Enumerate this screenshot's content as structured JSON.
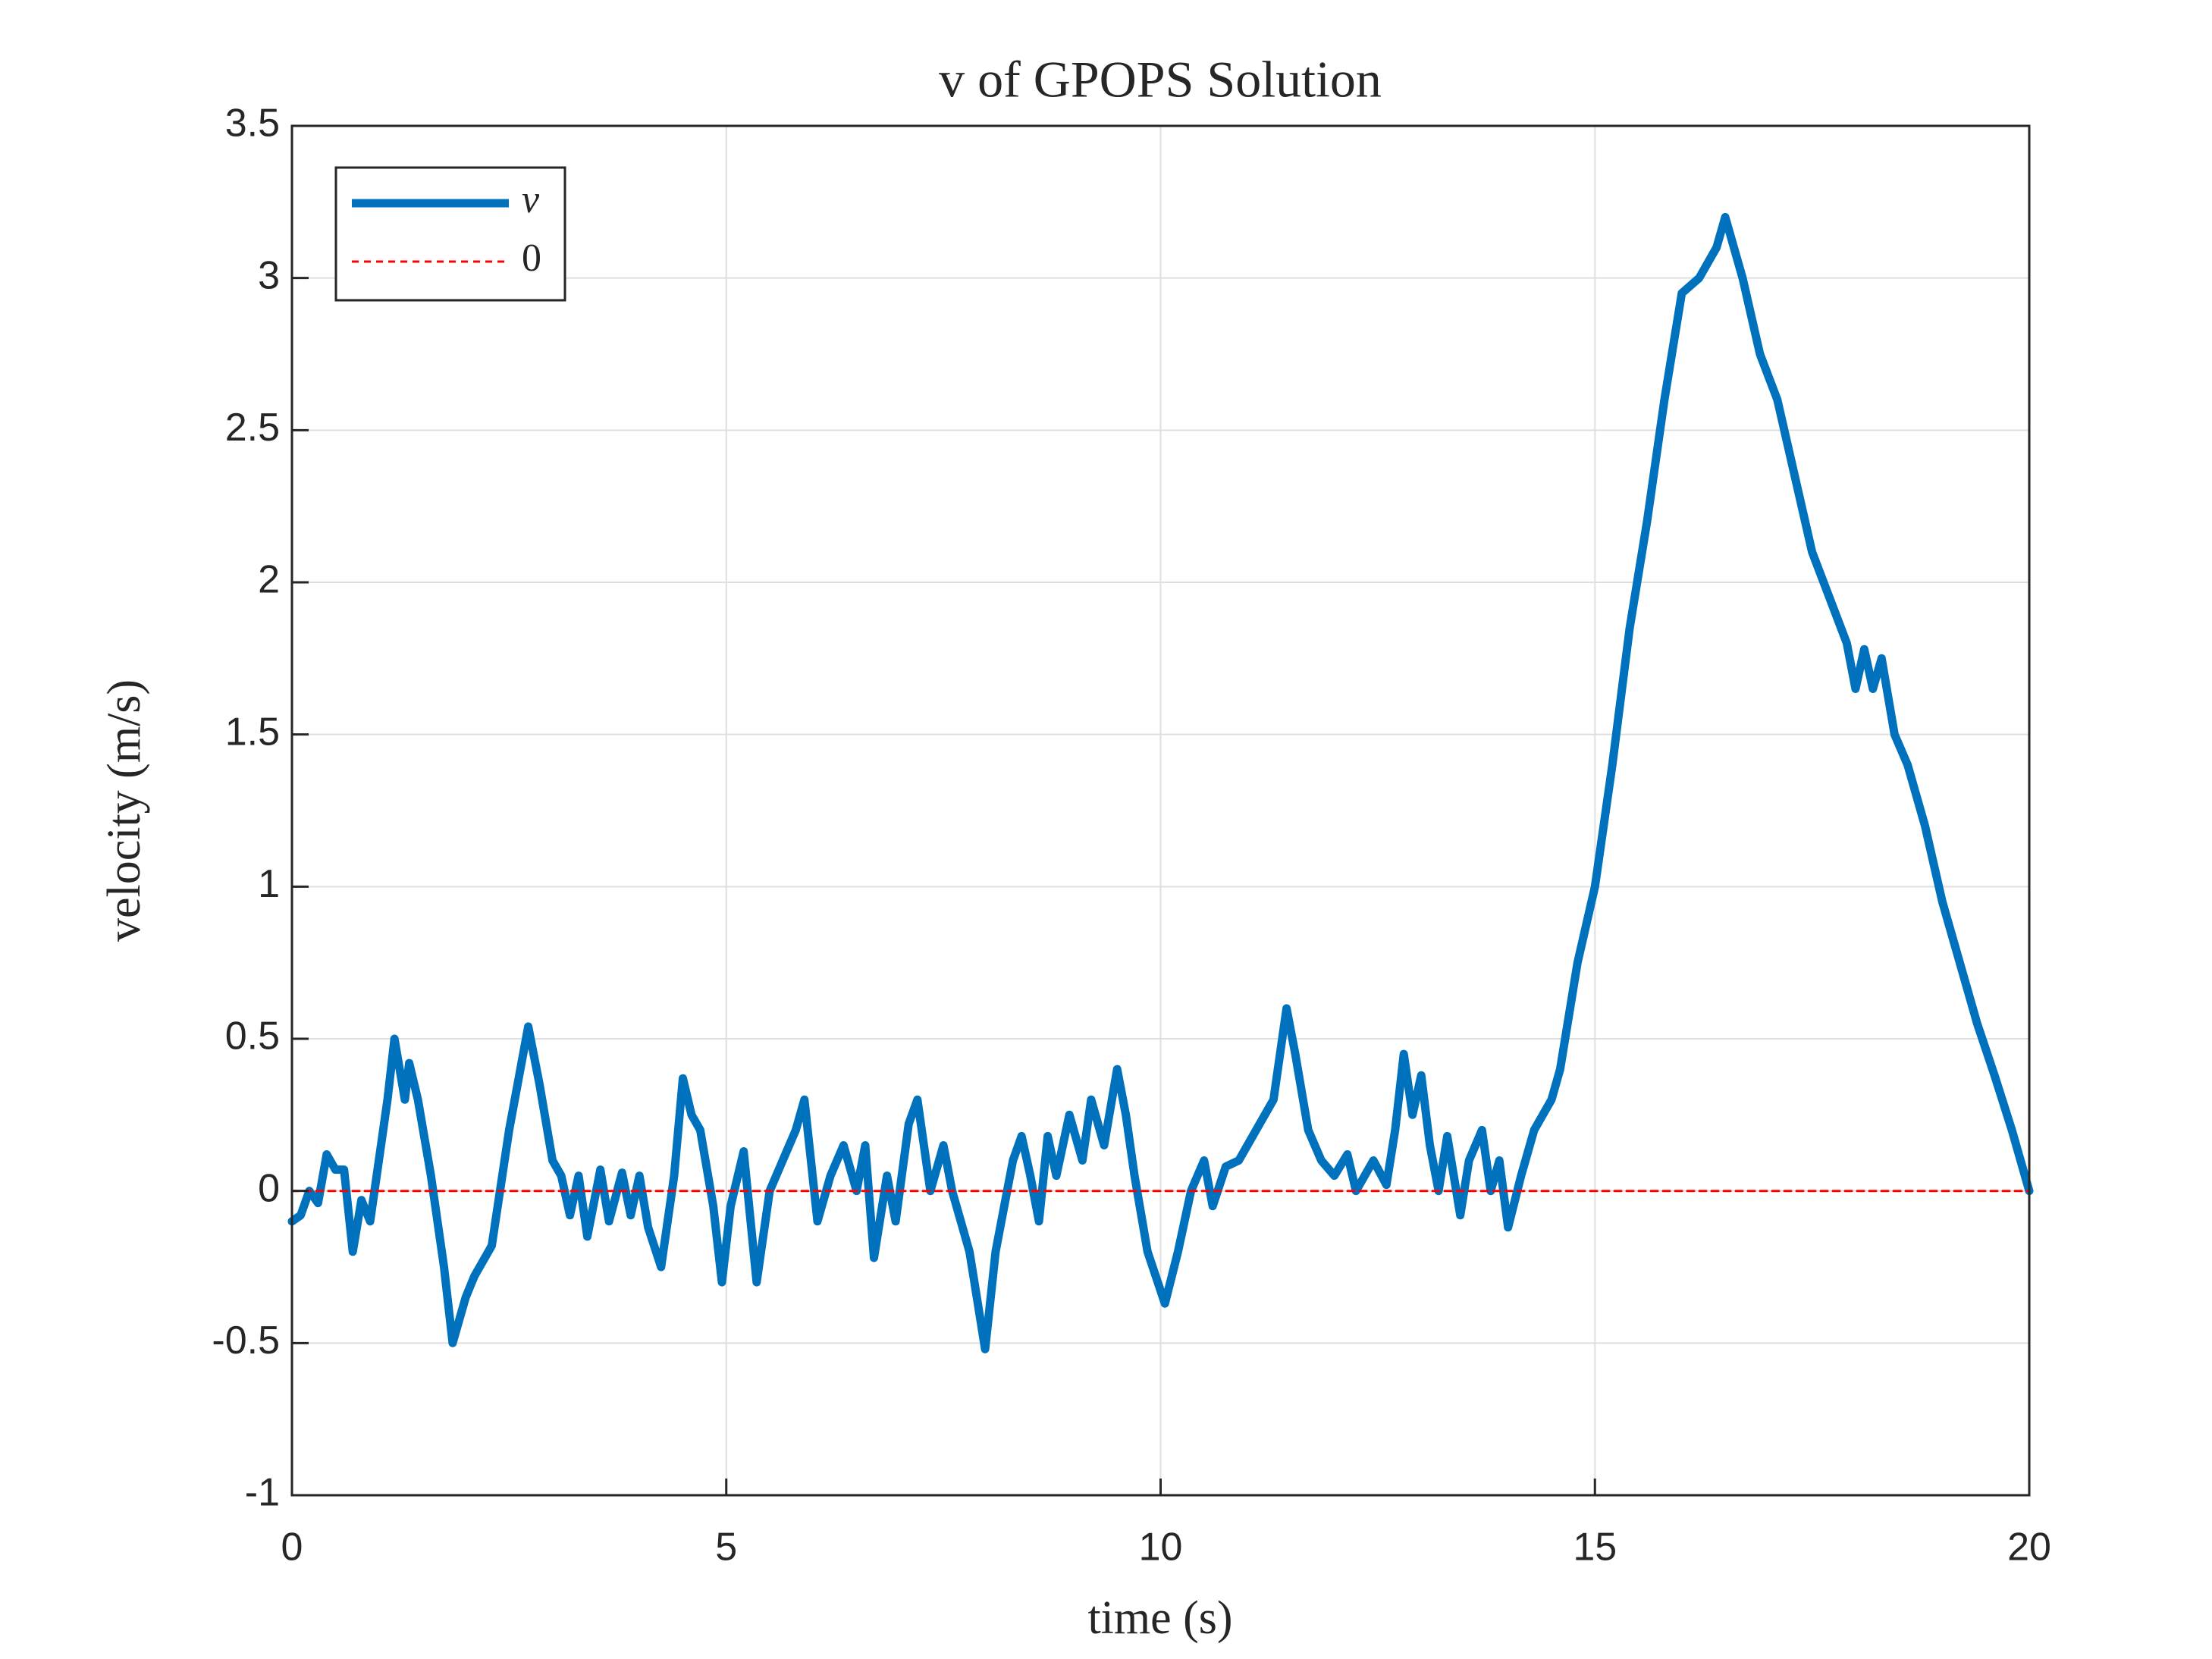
{
  "chart_data": {
    "type": "line",
    "title": "v of GPOPS Solution",
    "x_label": "time (s)",
    "y_label": "velocity (m/s)",
    "xlim": [
      0,
      20
    ],
    "xticks": [
      0,
      5,
      10,
      15,
      20
    ],
    "ylim": [
      -1,
      3.5
    ],
    "yticks": [
      -1,
      -0.5,
      0,
      0.5,
      1,
      1.5,
      2,
      2.5,
      3,
      3.5
    ],
    "grid": true,
    "legend": "upper-left",
    "series": [
      {
        "name": "v",
        "color": "#0072bd",
        "style": "solid",
        "x": [
          0,
          0.1,
          0.2,
          0.3,
          0.4,
          0.5,
          0.6,
          0.7,
          0.8,
          0.9,
          1.0,
          1.1,
          1.18,
          1.3,
          1.35,
          1.45,
          1.6,
          1.75,
          1.85,
          2.0,
          2.1,
          2.3,
          2.5,
          2.72,
          2.85,
          3.0,
          3.1,
          3.2,
          3.3,
          3.4,
          3.55,
          3.65,
          3.8,
          3.9,
          4.0,
          4.1,
          4.25,
          4.4,
          4.5,
          4.6,
          4.7,
          4.85,
          4.95,
          5.05,
          5.2,
          5.35,
          5.5,
          5.65,
          5.8,
          5.9,
          6.05,
          6.2,
          6.35,
          6.5,
          6.6,
          6.7,
          6.85,
          6.95,
          7.1,
          7.2,
          7.35,
          7.5,
          7.6,
          7.8,
          7.98,
          8.1,
          8.2,
          8.3,
          8.4,
          8.5,
          8.6,
          8.7,
          8.8,
          8.95,
          9.1,
          9.2,
          9.35,
          9.5,
          9.6,
          9.7,
          9.85,
          10.05,
          10.2,
          10.35,
          10.5,
          10.6,
          10.75,
          10.9,
          11.1,
          11.3,
          11.45,
          11.55,
          11.7,
          11.85,
          12.0,
          12.15,
          12.25,
          12.45,
          12.6,
          12.7,
          12.8,
          12.9,
          13.0,
          13.1,
          13.2,
          13.3,
          13.45,
          13.55,
          13.7,
          13.8,
          13.9,
          14.0,
          14.15,
          14.3,
          14.5,
          14.6,
          14.8,
          15.0,
          15.2,
          15.4,
          15.6,
          15.8,
          16.0,
          16.2,
          16.4,
          16.5,
          16.7,
          16.9,
          17.1,
          17.3,
          17.5,
          17.7,
          17.9,
          18.0,
          18.1,
          18.2,
          18.3,
          18.45,
          18.6,
          18.8,
          19.0,
          19.2,
          19.4,
          19.6,
          19.8,
          20.0
        ],
        "values": [
          -0.1,
          -0.08,
          0,
          -0.04,
          0.12,
          0.07,
          0.07,
          -0.2,
          -0.03,
          -0.1,
          0.1,
          0.3,
          0.5,
          0.3,
          0.42,
          0.3,
          0.05,
          -0.25,
          -0.5,
          -0.35,
          -0.28,
          -0.18,
          0.2,
          0.54,
          0.35,
          0.1,
          0.05,
          -0.08,
          0.05,
          -0.15,
          0.07,
          -0.1,
          0.06,
          -0.08,
          0.05,
          -0.12,
          -0.25,
          0.05,
          0.37,
          0.25,
          0.2,
          -0.05,
          -0.3,
          -0.05,
          0.13,
          -0.3,
          0,
          0.1,
          0.2,
          0.3,
          -0.1,
          0.05,
          0.15,
          0,
          0.15,
          -0.22,
          0.05,
          -0.1,
          0.22,
          0.3,
          0,
          0.15,
          0,
          -0.2,
          -0.52,
          -0.2,
          -0.05,
          0.1,
          0.18,
          0.05,
          -0.1,
          0.18,
          0.05,
          0.25,
          0.1,
          0.3,
          0.15,
          0.4,
          0.25,
          0.05,
          -0.2,
          -0.37,
          -0.2,
          0,
          0.1,
          -0.05,
          0.08,
          0.1,
          0.2,
          0.3,
          0.6,
          0.45,
          0.2,
          0.1,
          0.05,
          0.12,
          0,
          0.1,
          0.02,
          0.2,
          0.45,
          0.25,
          0.38,
          0.15,
          0,
          0.18,
          -0.08,
          0.1,
          0.2,
          0,
          0.1,
          -0.12,
          0.05,
          0.2,
          0.3,
          0.4,
          0.75,
          1.0,
          1.4,
          1.85,
          2.2,
          2.6,
          2.95,
          3.0,
          3.1,
          3.2,
          3.0,
          2.75,
          2.6,
          2.35,
          2.1,
          1.95,
          1.8,
          1.65,
          1.78,
          1.65,
          1.75,
          1.5,
          1.4,
          1.2,
          0.95,
          0.75,
          0.55,
          0.38,
          0.2,
          0
        ]
      },
      {
        "name": "0",
        "color": "#ff0000",
        "style": "dashed",
        "x": [
          0,
          20
        ],
        "values": [
          0,
          0
        ]
      }
    ]
  }
}
